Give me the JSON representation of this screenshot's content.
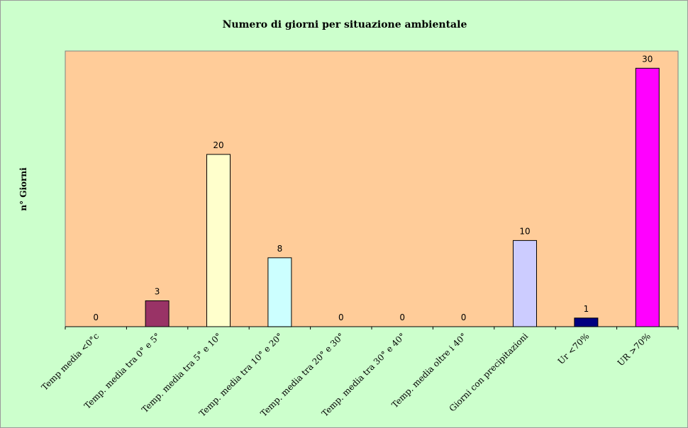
{
  "chart_data": {
    "type": "bar",
    "title": "Numero di giorni per situazione ambientale",
    "xlabel": "",
    "ylabel": "n° Giorni",
    "ylim": [
      0,
      32
    ],
    "grid": false,
    "legend": "none",
    "plot_background": "#ffcc99",
    "chart_background": "#ccffcc",
    "categories": [
      "Temp media <0°c",
      "Temp. media tra 0° e 5°",
      "Temp. media tra 5° e 10°",
      "Temp. media tra 10° e 20°",
      "Temp. media tra 20° e 30°",
      "Temp. media tra 30° e 40°",
      "Temp. media oltre i 40°",
      "Giorni con precipitazioni",
      "Ur <70%",
      "UR >70%"
    ],
    "values": [
      0,
      3,
      20,
      8,
      0,
      0,
      0,
      10,
      1,
      30
    ],
    "data_labels": [
      "0",
      "3",
      "20",
      "8",
      "0",
      "0",
      "0",
      "10",
      "1",
      "30"
    ],
    "bar_colors": [
      "#9999ff",
      "#993366",
      "#ffffcc",
      "#ccffff",
      "#660066",
      "#ff8080",
      "#0066cc",
      "#ccccff",
      "#000080",
      "#ff00ff"
    ]
  }
}
